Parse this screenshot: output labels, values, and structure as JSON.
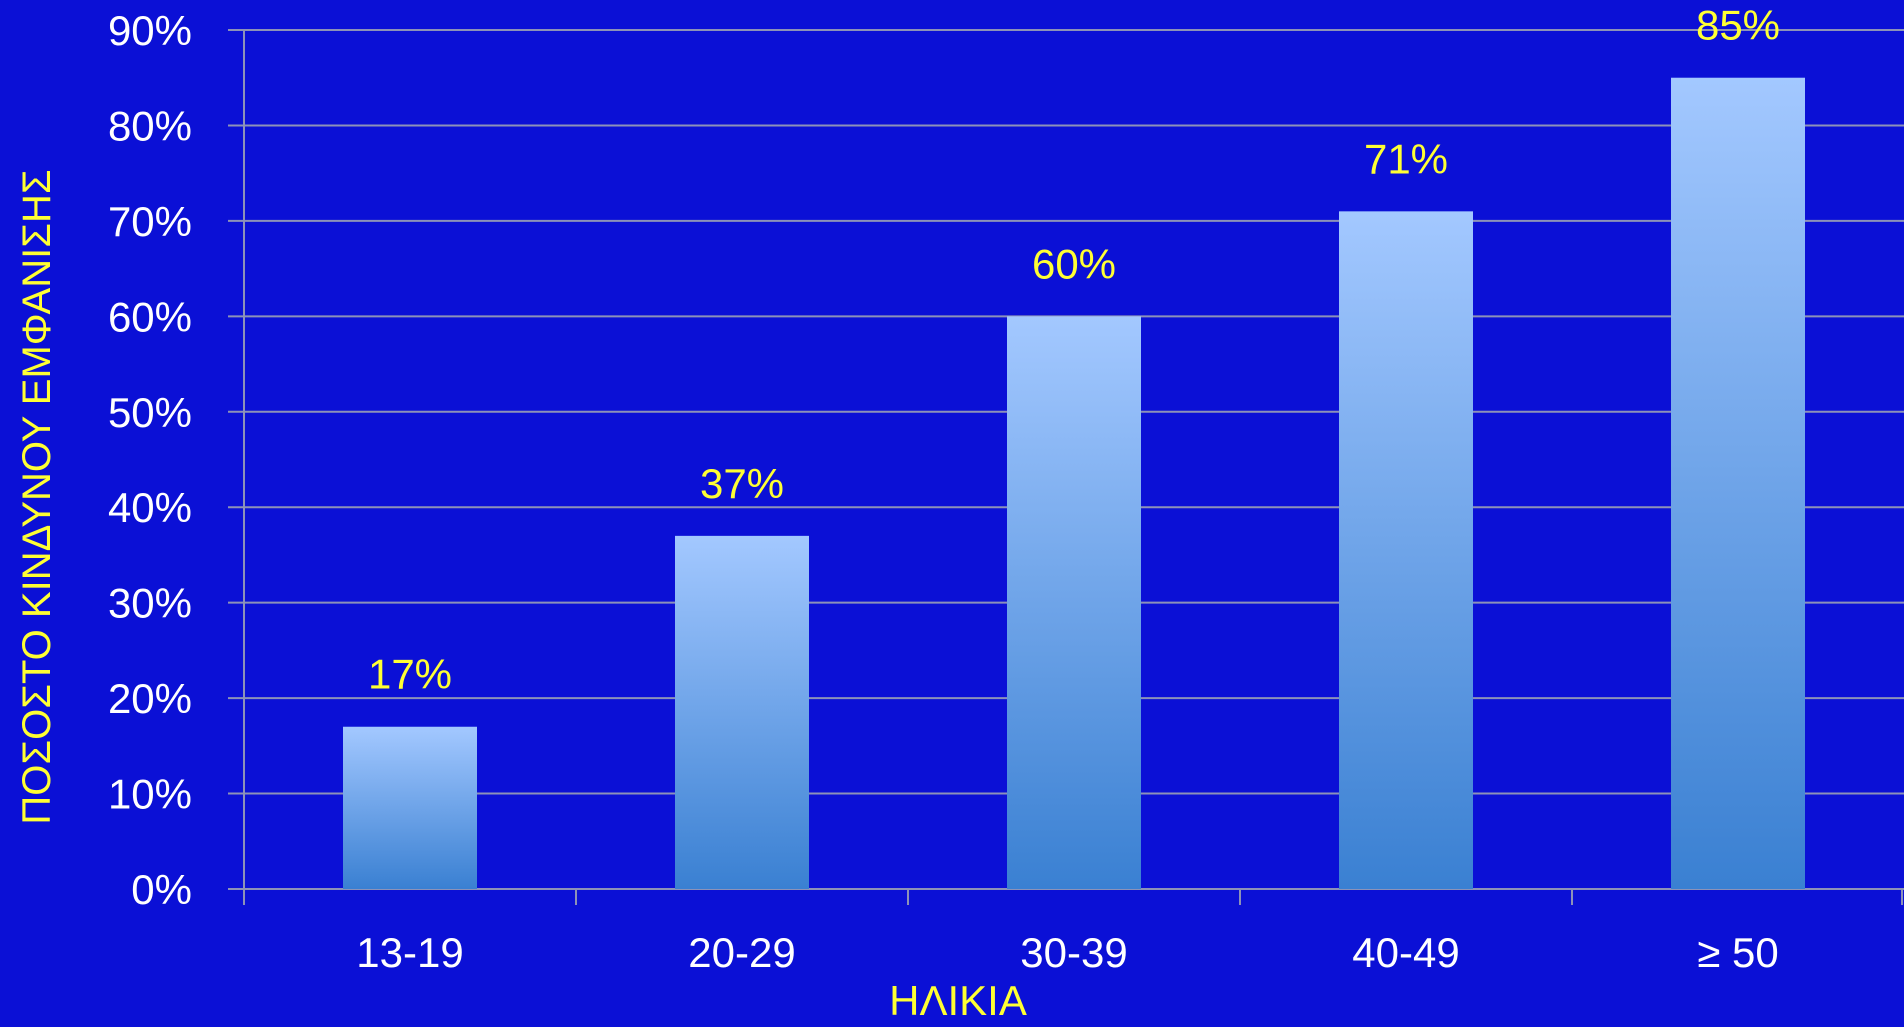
{
  "chart_data": {
    "type": "bar",
    "categories": [
      "13-19",
      "20-29",
      "30-39",
      "40-49",
      "≥ 50"
    ],
    "values": [
      17,
      37,
      60,
      71,
      85
    ],
    "data_labels": [
      "17%",
      "37%",
      "60%",
      "71%",
      "85%"
    ],
    "title": "",
    "xlabel": "ΗΛΙΚΙΑ",
    "ylabel": "ΠΟΣΟΣΤΟ ΚΙΝΔΥΝΟΥ ΕΜΦΑΝΙΣΗΣ",
    "ylim": [
      0,
      90
    ],
    "yticks": [
      "0%",
      "10%",
      "20%",
      "30%",
      "40%",
      "50%",
      "60%",
      "70%",
      "80%",
      "90%"
    ],
    "grid": true,
    "legend": "none",
    "colors": {
      "background": "#0b10d6",
      "bar_top": "#a3c8ff",
      "bar_bottom": "#3a80d2",
      "gridline": "#8d92b8",
      "tick_label": "#ffffff",
      "data_label": "#ffff33",
      "axis_title": "#ffff33"
    }
  }
}
